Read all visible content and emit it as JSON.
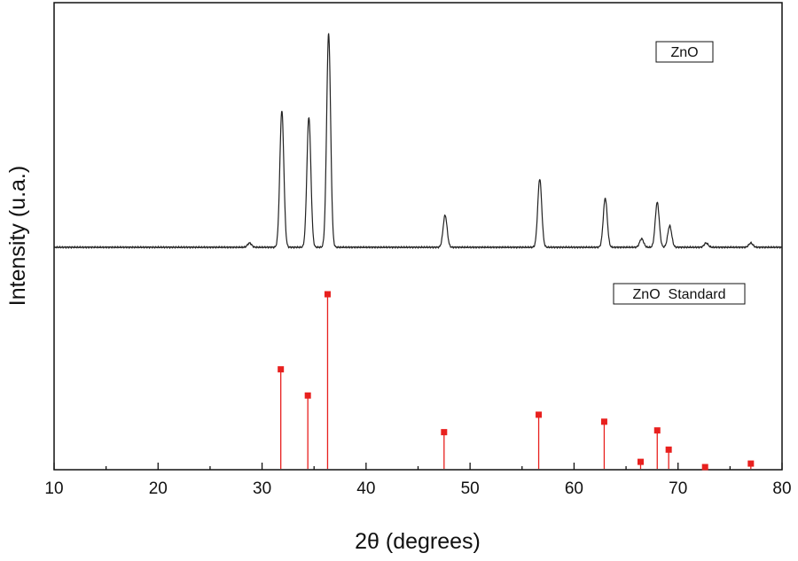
{
  "chart_data": {
    "type": "line",
    "xlabel": "2θ (degrees)",
    "ylabel": "Intensity (u.a.)",
    "xlim": [
      10,
      80
    ],
    "x_ticks": [
      10,
      20,
      30,
      40,
      50,
      60,
      70,
      80
    ],
    "y_ticks_shown": false,
    "grid": false,
    "series": [
      {
        "name": "ZnO",
        "color": "#222222",
        "kind": "xrd-pattern",
        "baseline": 0.0,
        "peaks": [
          {
            "x": 28.8,
            "y": 0.02
          },
          {
            "x": 31.9,
            "y": 0.64
          },
          {
            "x": 34.5,
            "y": 0.61
          },
          {
            "x": 36.4,
            "y": 1.0
          },
          {
            "x": 47.6,
            "y": 0.15
          },
          {
            "x": 56.7,
            "y": 0.32
          },
          {
            "x": 63.0,
            "y": 0.23
          },
          {
            "x": 66.5,
            "y": 0.04
          },
          {
            "x": 68.0,
            "y": 0.21
          },
          {
            "x": 69.2,
            "y": 0.1
          },
          {
            "x": 72.7,
            "y": 0.02
          },
          {
            "x": 77.0,
            "y": 0.02
          }
        ]
      },
      {
        "name": "ZnO  Standard",
        "color": "#e8201e",
        "kind": "stick-pattern",
        "peaks": [
          {
            "x": 31.8,
            "y": 0.57
          },
          {
            "x": 34.4,
            "y": 0.42
          },
          {
            "x": 36.3,
            "y": 1.0
          },
          {
            "x": 47.5,
            "y": 0.21
          },
          {
            "x": 56.6,
            "y": 0.31
          },
          {
            "x": 62.9,
            "y": 0.27
          },
          {
            "x": 66.4,
            "y": 0.04
          },
          {
            "x": 68.0,
            "y": 0.22
          },
          {
            "x": 69.1,
            "y": 0.11
          },
          {
            "x": 72.6,
            "y": 0.01
          },
          {
            "x": 77.0,
            "y": 0.03
          }
        ]
      }
    ]
  }
}
